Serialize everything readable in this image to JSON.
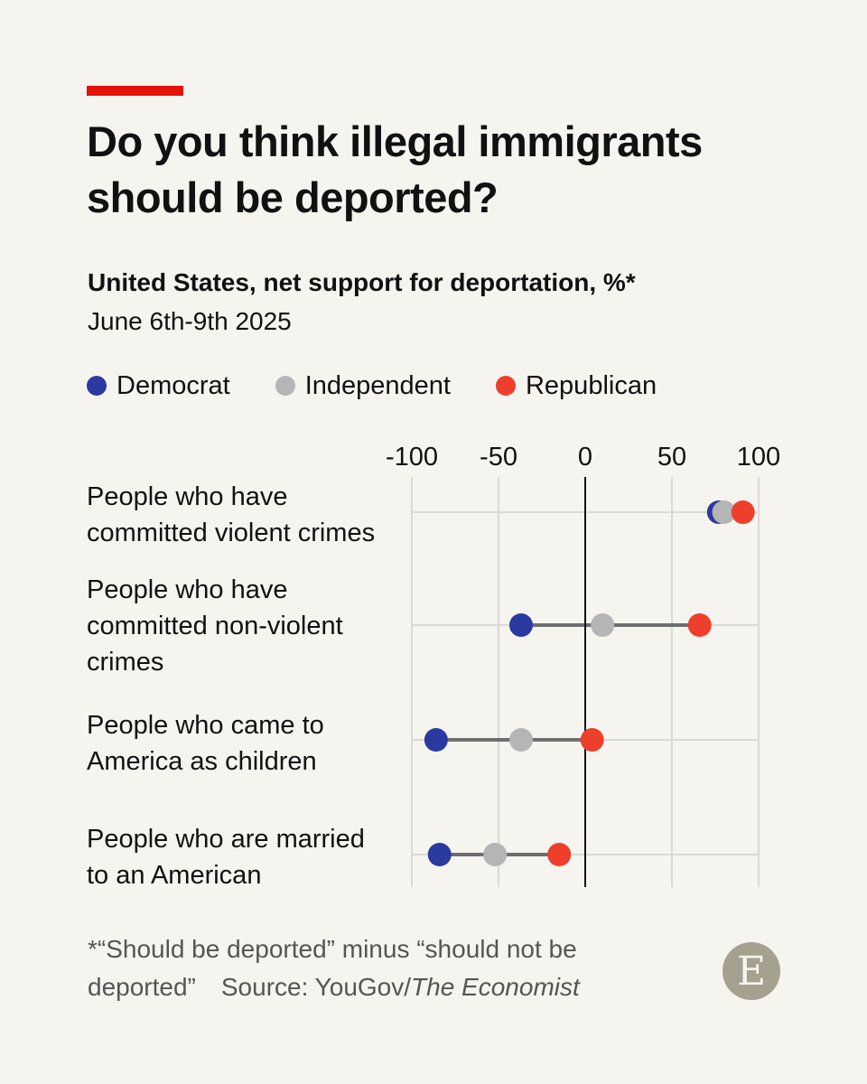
{
  "header": {
    "title": "Do you think illegal immigrants should be deported?",
    "subtitle": "United States, net support for deportation, %*",
    "date_range": "June 6th-9th 2025"
  },
  "colors": {
    "accent": "#e3120b",
    "Democrat": "#2b3aa0",
    "Independent": "#b5b5b5",
    "Republican": "#ee3e2c",
    "connector": "#6e6e6e",
    "grid": "#d9d9d6"
  },
  "chart_data": {
    "type": "dot",
    "subtitle": "United States, net support for deportation, %*",
    "xlim": [
      -100,
      100
    ],
    "ticks": [
      -100,
      -50,
      0,
      50,
      100
    ],
    "tick_labels": [
      "-100",
      "-50",
      "0",
      "50",
      "100"
    ],
    "grid": true,
    "legend_position": "top-left",
    "categories": [
      "People who have committed violent crimes",
      "People who have committed non-violent crimes",
      "People who came to America as children",
      "People who are married to an American"
    ],
    "series": [
      {
        "name": "Democrat",
        "values": [
          77,
          -37,
          -86,
          -84
        ]
      },
      {
        "name": "Independent",
        "values": [
          80,
          10,
          -37,
          -52
        ]
      },
      {
        "name": "Republican",
        "values": [
          91,
          66,
          4,
          -15
        ]
      }
    ]
  },
  "row_labels": [
    [
      "People who have",
      "committed violent crimes"
    ],
    [
      "People who have",
      "committed non-violent",
      "crimes"
    ],
    [
      "People who came to",
      "America as children"
    ],
    [
      "People who are married",
      "to an American"
    ]
  ],
  "footer": {
    "note": "*“Should be deported” minus “should not be deported”",
    "source_prefix": "Source: YouGov/",
    "source_publication": "The Economist",
    "logo_letter": "E"
  }
}
